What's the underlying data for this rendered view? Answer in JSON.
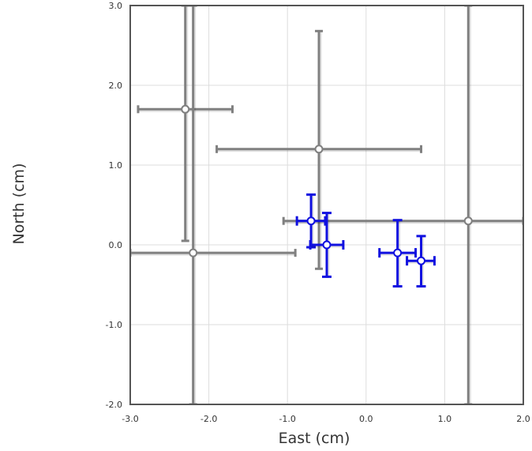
{
  "chart_data": {
    "type": "scatter",
    "title": "",
    "xlabel": "East (cm)",
    "ylabel": "North (cm)",
    "xlim": [
      -3.0,
      2.0
    ],
    "ylim": [
      -2.0,
      3.0
    ],
    "xticks": [
      -3.0,
      -2.0,
      -1.0,
      0.0,
      1.0,
      2.0
    ],
    "yticks": [
      -2.0,
      -1.0,
      0.0,
      1.0,
      2.0,
      3.0
    ],
    "xtick_labels": [
      "-3.0",
      "-2.0",
      "-1.0",
      "0.0",
      "1.0",
      "2.0"
    ],
    "ytick_labels": [
      "-2.0",
      "-1.0",
      "0.0",
      "1.0",
      "2.0",
      "3.0"
    ],
    "grid": true,
    "series": [
      {
        "color": "#808080",
        "points": [
          {
            "x": -2.3,
            "y": 1.7,
            "x_lo": -2.9,
            "x_hi": -1.7,
            "y_lo": 0.05,
            "y_hi": 3.0
          },
          {
            "x": -0.6,
            "y": 1.2,
            "x_lo": -1.9,
            "x_hi": 0.7,
            "y_lo": -0.3,
            "y_hi": 2.68
          },
          {
            "x": -2.2,
            "y": -0.1,
            "x_lo": -3.0,
            "x_hi": -0.9,
            "y_lo": -2.0,
            "y_hi": 3.0
          },
          {
            "x": 1.3,
            "y": 0.3,
            "x_lo": -1.05,
            "x_hi": 2.0,
            "y_lo": -2.0,
            "y_hi": 3.0
          }
        ]
      },
      {
        "color": "#1010e0",
        "points": [
          {
            "x": -0.7,
            "y": 0.3,
            "x_lo": -0.88,
            "x_hi": -0.52,
            "y_lo": -0.03,
            "y_hi": 0.63
          },
          {
            "x": -0.5,
            "y": 0.0,
            "x_lo": -0.71,
            "x_hi": -0.29,
            "y_lo": -0.4,
            "y_hi": 0.4
          },
          {
            "x": 0.4,
            "y": -0.1,
            "x_lo": 0.17,
            "x_hi": 0.63,
            "y_lo": -0.52,
            "y_hi": 0.31
          },
          {
            "x": 0.7,
            "y": -0.2,
            "x_lo": 0.52,
            "x_hi": 0.87,
            "y_lo": -0.52,
            "y_hi": 0.11
          }
        ]
      }
    ]
  }
}
